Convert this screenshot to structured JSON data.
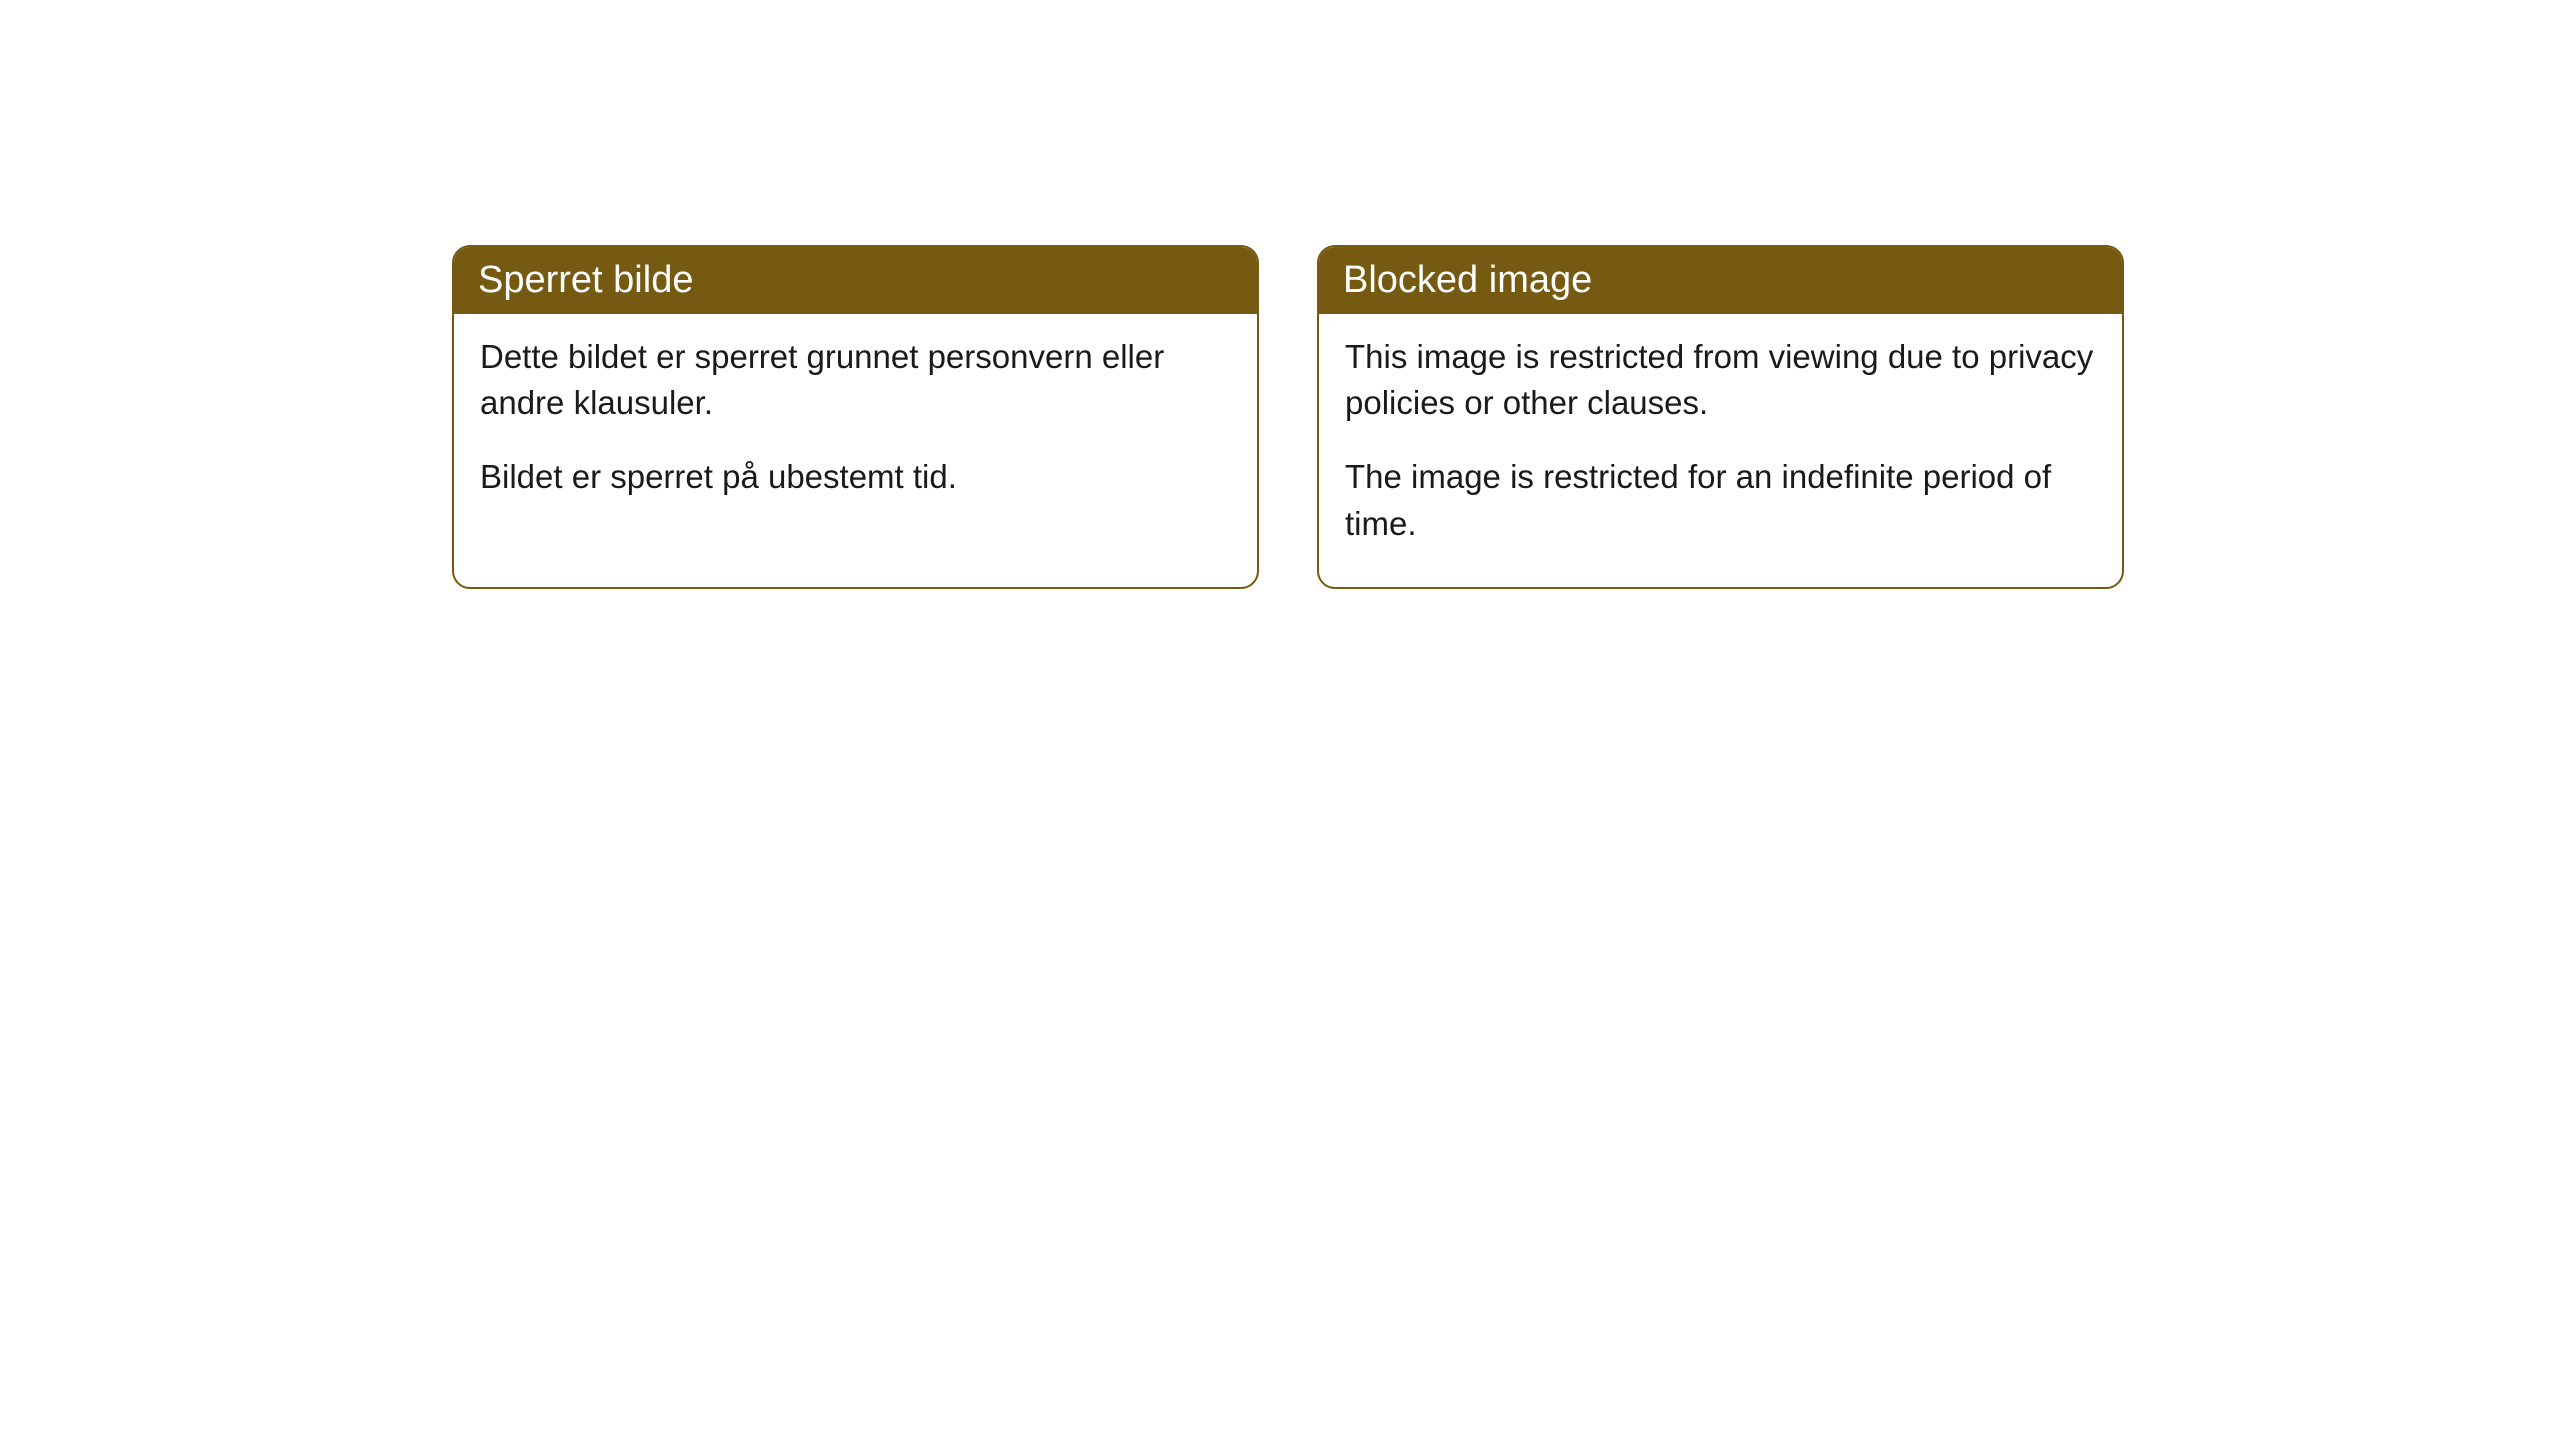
{
  "cards": [
    {
      "title": "Sperret bilde",
      "paragraph1": "Dette bildet er sperret grunnet personvern eller andre klausuler.",
      "paragraph2": "Bildet er sperret på ubestemt tid."
    },
    {
      "title": "Blocked image",
      "paragraph1": "This image is restricted from viewing due to privacy policies or other clauses.",
      "paragraph2": "The image is restricted for an indefinite period of time."
    }
  ],
  "styles": {
    "header_bg_color": "#765a12",
    "header_text_color": "#ffffff",
    "header_fontsize": 38,
    "body_fontsize": 33,
    "body_text_color": "#1a1a1a",
    "card_border_color": "#765a12",
    "card_border_radius": 18,
    "card_bg_color": "#ffffff",
    "page_bg_color": "#ffffff"
  }
}
